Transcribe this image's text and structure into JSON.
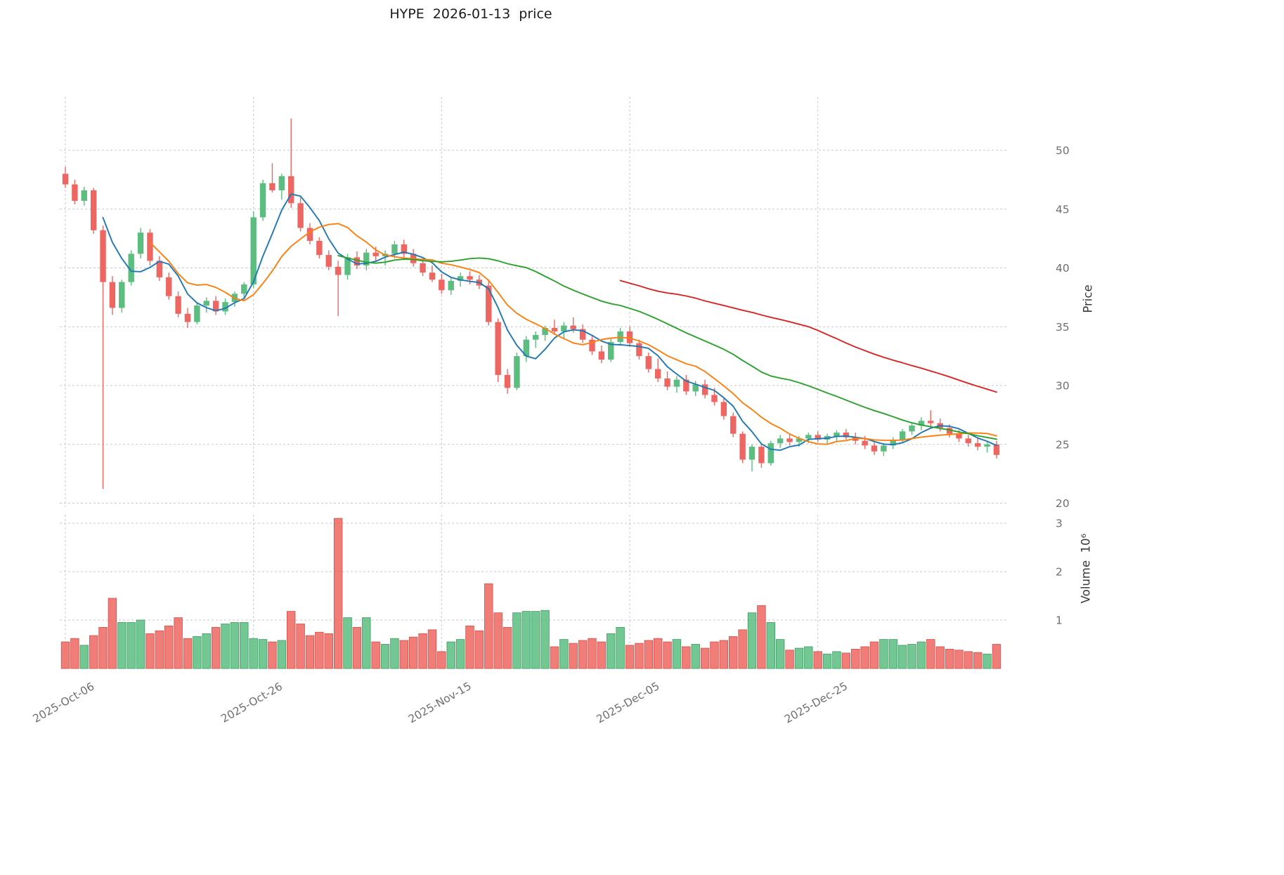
{
  "title": "HYPE  2026-01-13  price",
  "style": {
    "up": "#5bbd7f",
    "down": "#ee6662",
    "up_edge": "#3e9c63",
    "down_edge": "#d14d46",
    "ma_colors": [
      "#1f77b4",
      "#ff7f0e",
      "#2ca02c",
      "#d62728"
    ],
    "grid": "#c9c9c9",
    "background": "#ffffff"
  },
  "chart_data": {
    "type": "candlestick",
    "title": "HYPE  2026-01-13  price",
    "ylabel": "Price",
    "ylabel_volume": "Volume  10⁶",
    "ylim_price": [
      19.7,
      54.5
    ],
    "ylim_volume": [
      0,
      3.3
    ],
    "grid": true,
    "price_ticks": [
      20,
      25,
      30,
      35,
      40,
      45,
      50
    ],
    "volume_ticks": [
      1,
      2,
      3
    ],
    "x_ticks": [
      {
        "index": 0,
        "label": "2025-Oct-06"
      },
      {
        "index": 20,
        "label": "2025-Oct-26"
      },
      {
        "index": 40,
        "label": "2025-Nov-15"
      },
      {
        "index": 60,
        "label": "2025-Dec-05"
      },
      {
        "index": 80,
        "label": "2025-Dec-25"
      }
    ],
    "moving_average_periods": [
      5,
      10,
      30,
      60
    ],
    "ohlc": [
      [
        48.0,
        48.6,
        46.8,
        47.1
      ],
      [
        47.1,
        47.5,
        45.4,
        45.7
      ],
      [
        45.7,
        46.9,
        45.3,
        46.6
      ],
      [
        46.6,
        46.8,
        42.9,
        43.2
      ],
      [
        43.2,
        43.6,
        21.2,
        38.8
      ],
      [
        38.8,
        39.3,
        36.0,
        36.6
      ],
      [
        36.6,
        39.0,
        36.2,
        38.8
      ],
      [
        38.8,
        41.5,
        38.5,
        41.2
      ],
      [
        41.2,
        43.4,
        40.8,
        43.0
      ],
      [
        43.0,
        43.3,
        40.2,
        40.6
      ],
      [
        40.6,
        41.0,
        38.9,
        39.2
      ],
      [
        39.2,
        39.6,
        37.3,
        37.6
      ],
      [
        37.6,
        38.0,
        35.8,
        36.1
      ],
      [
        36.1,
        36.6,
        34.9,
        35.4
      ],
      [
        35.4,
        37.0,
        35.2,
        36.8
      ],
      [
        36.8,
        37.5,
        36.2,
        37.2
      ],
      [
        37.2,
        37.6,
        36.0,
        36.3
      ],
      [
        36.3,
        37.4,
        36.0,
        37.1
      ],
      [
        37.1,
        38.0,
        36.7,
        37.8
      ],
      [
        37.8,
        38.8,
        37.4,
        38.6
      ],
      [
        38.6,
        44.8,
        38.3,
        44.3
      ],
      [
        44.3,
        47.5,
        44.0,
        47.2
      ],
      [
        47.2,
        48.9,
        46.4,
        46.6
      ],
      [
        46.6,
        48.0,
        45.8,
        47.8
      ],
      [
        47.8,
        52.7,
        45.1,
        45.5
      ],
      [
        45.5,
        46.0,
        43.1,
        43.4
      ],
      [
        43.4,
        43.8,
        42.0,
        42.3
      ],
      [
        42.3,
        42.6,
        40.8,
        41.1
      ],
      [
        41.1,
        41.5,
        39.8,
        40.1
      ],
      [
        40.1,
        40.6,
        35.9,
        39.4
      ],
      [
        39.4,
        41.2,
        39.0,
        40.9
      ],
      [
        40.9,
        41.4,
        39.9,
        40.2
      ],
      [
        40.2,
        41.6,
        39.8,
        41.3
      ],
      [
        41.3,
        41.8,
        40.6,
        41.0
      ],
      [
        41.0,
        41.5,
        40.2,
        41.2
      ],
      [
        41.2,
        42.3,
        40.8,
        42.0
      ],
      [
        42.0,
        42.4,
        40.9,
        41.2
      ],
      [
        41.2,
        41.6,
        40.1,
        40.4
      ],
      [
        40.4,
        40.8,
        39.3,
        39.6
      ],
      [
        39.6,
        40.2,
        38.8,
        39.0
      ],
      [
        39.0,
        39.5,
        37.8,
        38.1
      ],
      [
        38.1,
        39.2,
        37.7,
        38.9
      ],
      [
        38.9,
        39.6,
        38.4,
        39.3
      ],
      [
        39.3,
        39.7,
        38.6,
        39.0
      ],
      [
        39.0,
        39.4,
        38.2,
        38.5
      ],
      [
        38.5,
        39.0,
        35.1,
        35.4
      ],
      [
        35.4,
        35.7,
        30.3,
        30.9
      ],
      [
        30.9,
        31.4,
        29.3,
        29.8
      ],
      [
        29.8,
        32.8,
        29.6,
        32.5
      ],
      [
        32.5,
        34.2,
        32.0,
        33.9
      ],
      [
        33.9,
        34.6,
        33.2,
        34.3
      ],
      [
        34.3,
        35.1,
        33.8,
        34.9
      ],
      [
        34.9,
        35.6,
        34.3,
        34.6
      ],
      [
        34.6,
        35.4,
        34.0,
        35.1
      ],
      [
        35.1,
        35.8,
        34.5,
        34.8
      ],
      [
        34.8,
        35.2,
        33.6,
        33.9
      ],
      [
        33.9,
        34.3,
        32.6,
        32.9
      ],
      [
        32.9,
        33.4,
        31.9,
        32.2
      ],
      [
        32.2,
        34.0,
        32.0,
        33.7
      ],
      [
        33.7,
        34.9,
        33.4,
        34.6
      ],
      [
        34.6,
        35.0,
        33.3,
        33.6
      ],
      [
        33.6,
        33.9,
        32.2,
        32.5
      ],
      [
        32.5,
        32.8,
        31.1,
        31.4
      ],
      [
        31.4,
        32.3,
        30.3,
        30.6
      ],
      [
        30.6,
        31.2,
        29.6,
        29.9
      ],
      [
        29.9,
        30.8,
        29.4,
        30.5
      ],
      [
        30.5,
        30.9,
        29.2,
        29.5
      ],
      [
        29.5,
        30.4,
        29.1,
        30.1
      ],
      [
        30.1,
        30.5,
        28.9,
        29.2
      ],
      [
        29.2,
        29.8,
        28.3,
        28.6
      ],
      [
        28.6,
        28.9,
        27.1,
        27.4
      ],
      [
        27.4,
        27.7,
        25.6,
        25.9
      ],
      [
        25.9,
        26.1,
        23.4,
        23.7
      ],
      [
        23.7,
        25.0,
        22.7,
        24.8
      ],
      [
        24.8,
        25.1,
        23.0,
        23.4
      ],
      [
        23.4,
        25.3,
        23.2,
        25.1
      ],
      [
        25.1,
        25.8,
        24.7,
        25.5
      ],
      [
        25.5,
        25.9,
        24.9,
        25.2
      ],
      [
        25.2,
        25.7,
        24.8,
        25.5
      ],
      [
        25.5,
        26.0,
        25.1,
        25.8
      ],
      [
        25.8,
        26.1,
        25.2,
        25.4
      ],
      [
        25.4,
        25.9,
        25.0,
        25.7
      ],
      [
        25.7,
        26.2,
        25.3,
        26.0
      ],
      [
        26.0,
        26.3,
        25.4,
        25.6
      ],
      [
        25.6,
        26.0,
        25.0,
        25.3
      ],
      [
        25.3,
        25.7,
        24.6,
        24.9
      ],
      [
        24.9,
        25.2,
        24.1,
        24.4
      ],
      [
        24.4,
        25.1,
        24.0,
        24.9
      ],
      [
        24.9,
        25.6,
        24.6,
        25.4
      ],
      [
        25.4,
        26.3,
        25.2,
        26.1
      ],
      [
        26.1,
        26.9,
        25.8,
        26.6
      ],
      [
        26.6,
        27.3,
        26.2,
        27.0
      ],
      [
        27.0,
        27.9,
        26.5,
        26.8
      ],
      [
        26.8,
        27.2,
        26.1,
        26.4
      ],
      [
        26.4,
        26.7,
        25.6,
        25.9
      ],
      [
        25.9,
        26.2,
        25.2,
        25.5
      ],
      [
        25.5,
        25.8,
        24.8,
        25.1
      ],
      [
        25.1,
        25.5,
        24.5,
        24.8
      ],
      [
        24.8,
        25.2,
        24.3,
        25.0
      ],
      [
        25.0,
        25.3,
        23.8,
        24.1
      ]
    ],
    "volume_millions": [
      0.55,
      0.62,
      0.48,
      0.68,
      0.85,
      1.45,
      0.95,
      0.95,
      1.0,
      0.72,
      0.78,
      0.88,
      1.05,
      0.62,
      0.66,
      0.72,
      0.85,
      0.92,
      0.95,
      0.95,
      0.62,
      0.6,
      0.55,
      0.58,
      1.18,
      0.92,
      0.68,
      0.75,
      0.72,
      3.1,
      1.05,
      0.85,
      1.05,
      0.55,
      0.5,
      0.62,
      0.58,
      0.65,
      0.72,
      0.8,
      0.35,
      0.55,
      0.6,
      0.88,
      0.78,
      1.75,
      1.15,
      0.85,
      1.15,
      1.18,
      1.18,
      1.2,
      0.45,
      0.6,
      0.52,
      0.58,
      0.62,
      0.55,
      0.72,
      0.85,
      0.48,
      0.52,
      0.58,
      0.62,
      0.55,
      0.6,
      0.45,
      0.5,
      0.42,
      0.55,
      0.58,
      0.66,
      0.8,
      1.15,
      1.3,
      0.95,
      0.6,
      0.38,
      0.42,
      0.45,
      0.35,
      0.3,
      0.35,
      0.32,
      0.4,
      0.45,
      0.55,
      0.6,
      0.6,
      0.48,
      0.5,
      0.55,
      0.6,
      0.45,
      0.4,
      0.38,
      0.35,
      0.33,
      0.3,
      0.5
    ]
  }
}
